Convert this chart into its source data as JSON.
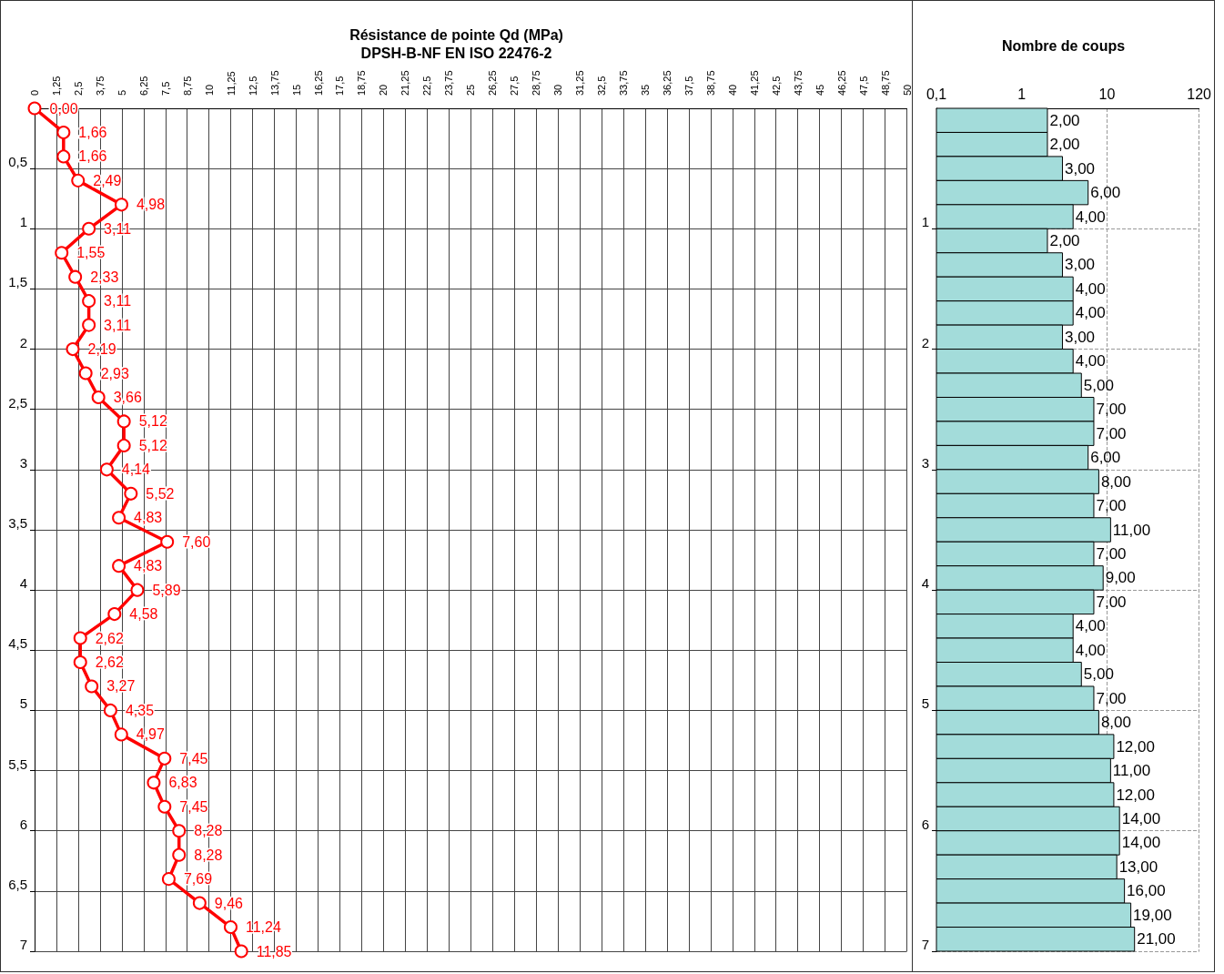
{
  "chart_data": [
    {
      "type": "line",
      "title": "Résistance de pointe Qd (MPa)",
      "subtitle": "DPSH-B-NF EN ISO 22476-2",
      "orientation": "horizontal",
      "color": "#ff0000",
      "marker": "circle",
      "line_style": "solid",
      "grid": true,
      "x": [
        0,
        0.2,
        0.4,
        0.6,
        0.8,
        1.0,
        1.2,
        1.4,
        1.6,
        1.8,
        2.0,
        2.2,
        2.4,
        2.6,
        2.8,
        3.0,
        3.2,
        3.4,
        3.6,
        3.8,
        4.0,
        4.2,
        4.4,
        4.6,
        4.8,
        5.0,
        5.2,
        5.4,
        5.6,
        5.8,
        6.0,
        6.2,
        6.4,
        6.6,
        6.8,
        7.0
      ],
      "values": [
        0,
        1.66,
        1.66,
        2.49,
        4.98,
        3.11,
        1.55,
        2.33,
        3.11,
        3.11,
        2.19,
        2.93,
        3.66,
        5.12,
        5.12,
        4.14,
        5.52,
        4.83,
        7.6,
        4.83,
        5.89,
        4.58,
        2.62,
        2.62,
        3.27,
        4.35,
        4.97,
        7.45,
        6.83,
        7.45,
        8.28,
        8.28,
        7.69,
        9.46,
        11.24,
        11.85
      ],
      "value_labels": [
        "0,00",
        "1,66",
        "1,66",
        "2,49",
        "4,98",
        "3,11",
        "1,55",
        "2,33",
        "3,11",
        "3,11",
        "2,19",
        "2,93",
        "3,66",
        "5,12",
        "5,12",
        "4,14",
        "5,52",
        "4,83",
        "7,60",
        "4,83",
        "5,89",
        "4,58",
        "2,62",
        "2,62",
        "3,27",
        "4,35",
        "4,97",
        "7,45",
        "6,83",
        "7,45",
        "8,28",
        "8,28",
        "7,69",
        "9,46",
        "11,24",
        "11,85"
      ],
      "xlim": [
        0,
        50
      ],
      "xticks": [
        0,
        {
          "value": 1.25,
          "label": "1,25"
        },
        {
          "value": 2.5,
          "label": "2,5"
        },
        {
          "value": 3.75,
          "label": "3,75"
        },
        5,
        {
          "value": 6.25,
          "label": "6,25"
        },
        {
          "value": 7.5,
          "label": "7,5"
        },
        {
          "value": 8.75,
          "label": "8,75"
        },
        10,
        {
          "value": 11.25,
          "label": "11,25"
        },
        {
          "value": 12.5,
          "label": "12,5"
        },
        {
          "value": 13.75,
          "label": "13,75"
        },
        15,
        {
          "value": 16.25,
          "label": "16,25"
        },
        {
          "value": 17.5,
          "label": "17,5"
        },
        {
          "value": 18.75,
          "label": "18,75"
        },
        20,
        {
          "value": 21.25,
          "label": "21,25"
        },
        {
          "value": 22.5,
          "label": "22,5"
        },
        {
          "value": 23.75,
          "label": "23,75"
        },
        25,
        {
          "value": 26.25,
          "label": "26,25"
        },
        {
          "value": 27.5,
          "label": "27,5"
        },
        {
          "value": 28.75,
          "label": "28,75"
        },
        30,
        {
          "value": 31.25,
          "label": "31,25"
        },
        {
          "value": 32.5,
          "label": "32,5"
        },
        {
          "value": 33.75,
          "label": "33,75"
        },
        35,
        {
          "value": 36.25,
          "label": "36,25"
        },
        {
          "value": 37.5,
          "label": "37,5"
        },
        {
          "value": 38.75,
          "label": "38,75"
        },
        40,
        {
          "value": 41.25,
          "label": "41,25"
        },
        {
          "value": 42.5,
          "label": "42,5"
        },
        {
          "value": 43.75,
          "label": "43,75"
        },
        45,
        {
          "value": 46.25,
          "label": "46,25"
        },
        {
          "value": 47.5,
          "label": "47,5"
        },
        {
          "value": 48.75,
          "label": "48,75"
        },
        50
      ],
      "ylim": [
        7,
        0
      ],
      "yticks": [
        {
          "value": 0.5,
          "label": "0,5"
        },
        1,
        {
          "value": 1.5,
          "label": "1,5"
        },
        2,
        {
          "value": 2.5,
          "label": "2,5"
        },
        3,
        {
          "value": 3.5,
          "label": "3,5"
        },
        4,
        {
          "value": 4.5,
          "label": "4,5"
        },
        5,
        {
          "value": 5.5,
          "label": "5,5"
        },
        6,
        {
          "value": 6.5,
          "label": "6,5"
        },
        7
      ]
    },
    {
      "type": "bar",
      "title": "Nombre de coups",
      "orientation": "horizontal",
      "color": "#a3dcda",
      "log": "x",
      "grid": true,
      "x": [
        0.1,
        0.3,
        0.5,
        0.7,
        0.9,
        1.1,
        1.3,
        1.5,
        1.7,
        1.9,
        2.1,
        2.3,
        2.5,
        2.7,
        2.9,
        3.1,
        3.3,
        3.5,
        3.7,
        3.9,
        4.1,
        4.3,
        4.5,
        4.7,
        4.9,
        5.1,
        5.3,
        5.5,
        5.7,
        5.9,
        6.1,
        6.3,
        6.5,
        6.7,
        6.9
      ],
      "values": [
        2,
        2,
        3,
        6,
        4,
        2,
        3,
        4,
        4,
        3,
        4,
        5,
        7,
        7,
        6,
        8,
        7,
        11,
        7,
        9,
        7,
        4,
        4,
        5,
        7,
        8,
        12,
        11,
        12,
        14,
        14,
        13,
        16,
        19,
        21
      ],
      "value_labels": [
        "2,00",
        "2,00",
        "3,00",
        "6,00",
        "4,00",
        "2,00",
        "3,00",
        "4,00",
        "4,00",
        "3,00",
        "4,00",
        "5,00",
        "7,00",
        "7,00",
        "6,00",
        "8,00",
        "7,00",
        "11,00",
        "7,00",
        "9,00",
        "7,00",
        "4,00",
        "4,00",
        "5,00",
        "7,00",
        "8,00",
        "12,00",
        "11,00",
        "12,00",
        "14,00",
        "14,00",
        "13,00",
        "16,00",
        "19,00",
        "21,00"
      ],
      "xlim": [
        0.1,
        120
      ],
      "xticks": [
        {
          "value": 0.1,
          "label": "0,1"
        },
        1,
        10,
        120
      ],
      "ylim": [
        7,
        0
      ],
      "yticks": [
        1,
        2,
        3,
        4,
        5,
        6,
        7
      ]
    }
  ]
}
